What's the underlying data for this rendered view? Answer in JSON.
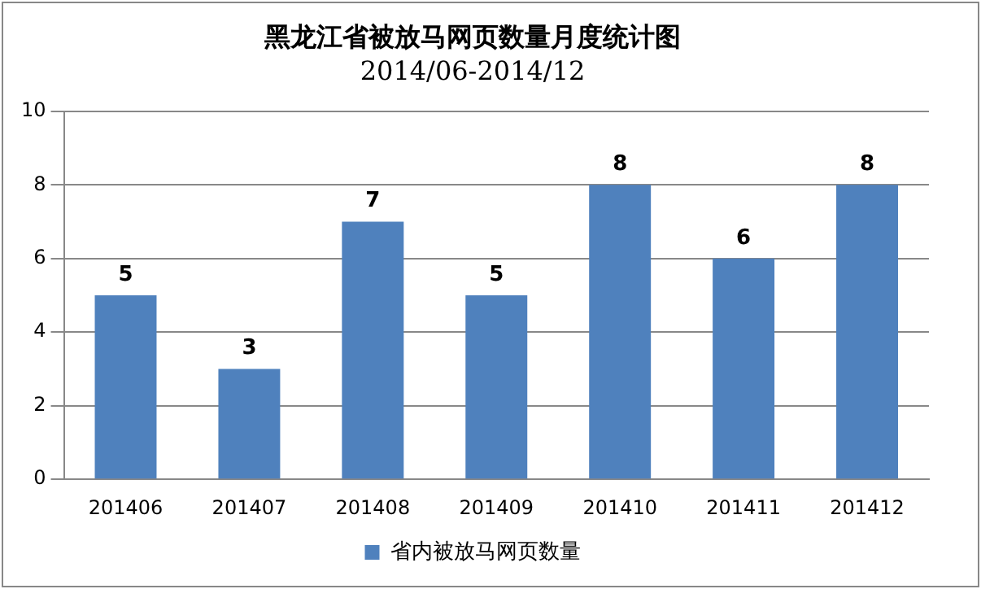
{
  "chart_data": {
    "type": "bar",
    "title": "黑龙江省被放马网页数量月度统计图",
    "subtitle": "2014/06-2014/12",
    "categories": [
      "201406",
      "201407",
      "201408",
      "201409",
      "201410",
      "201411",
      "201412"
    ],
    "series": [
      {
        "name": "省内被放马网页数量",
        "color": "#4f81bd",
        "values": [
          5,
          3,
          7,
          5,
          8,
          6,
          8
        ]
      }
    ],
    "ylim": [
      0,
      10
    ],
    "yticks": [
      0,
      2,
      4,
      6,
      8,
      10
    ],
    "grid": "y",
    "legend": "bottom",
    "data_labels": true
  }
}
